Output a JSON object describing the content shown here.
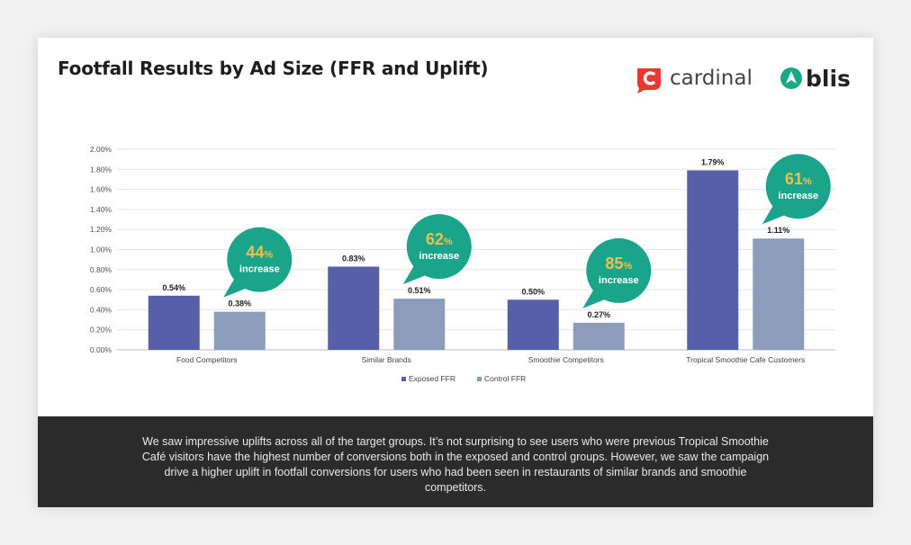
{
  "title": "Footfall Results by Ad Size (FFR and Uplift)",
  "logos": {
    "cardinal": "cardinal",
    "blis": "blis",
    "cardinal_color": "#e63a2e",
    "blis_color": "#18a887"
  },
  "chart_data": {
    "type": "bar",
    "categories": [
      "Food Competitors",
      "Similar Brands",
      "Smoothie Competitors",
      "Tropical Smoothie Cafe Customers"
    ],
    "series": [
      {
        "name": "Exposed FFR",
        "values": [
          0.54,
          0.83,
          0.5,
          1.79
        ],
        "labels": [
          "0.54%",
          "0.83%",
          "0.50%",
          "1.79%"
        ],
        "color": "#5660a8"
      },
      {
        "name": "Control FFR",
        "values": [
          0.38,
          0.51,
          0.27,
          1.11
        ],
        "labels": [
          "0.38%",
          "0.51%",
          "0.27%",
          "1.11%"
        ],
        "color": "#8b9dba"
      }
    ],
    "ylim": [
      0,
      2.0
    ],
    "yticks": [
      "0.00%",
      "0.20%",
      "0.40%",
      "0.60%",
      "0.80%",
      "1.00%",
      "1.20%",
      "1.40%",
      "1.60%",
      "1.80%",
      "2.00%"
    ],
    "grid": true,
    "legend_position": "bottom",
    "annotations": [
      {
        "value": "44",
        "unit": "%",
        "text": "increase"
      },
      {
        "value": "62",
        "unit": "%",
        "text": "increase"
      },
      {
        "value": "85",
        "unit": "%",
        "text": "increase"
      },
      {
        "value": "61",
        "unit": "%",
        "text": "increase"
      }
    ],
    "annotation_color": "#1aa58a"
  },
  "footer": {
    "text": "We saw impressive uplifts across all of the target groups. It’s not surprising to see users who were previous Tropical Smoothie Café visitors have the highest number of conversions both in the exposed and control groups. However, we saw the campaign drive a higher uplift in footfall conversions for users who had been seen in restaurants of similar brands and smoothie competitors."
  }
}
